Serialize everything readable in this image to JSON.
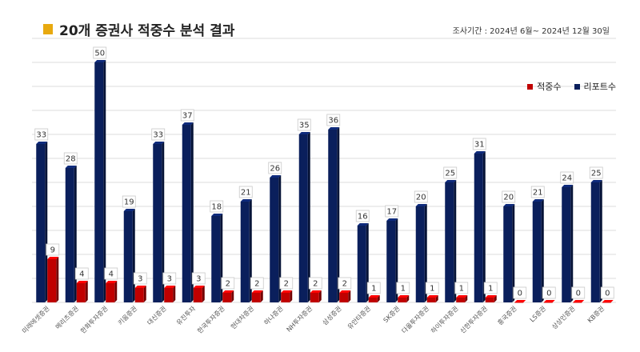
{
  "header": {
    "title": "20개 증권사 적중수 분석 결과",
    "period": "조사기간 : 2024년 6월~ 2024년 12월 30일"
  },
  "colors": {
    "accent": "#e8a90f",
    "hits": "#c00000",
    "reports": "#0a1f5c",
    "grid": "#dddddd"
  },
  "chart_data": {
    "type": "bar",
    "title": "20개 증권사 적중수 분석 결과",
    "xlabel": "",
    "ylabel": "",
    "ylim": [
      0,
      55
    ],
    "grid": true,
    "legend_position": "top-right",
    "categories": [
      "미래에셋증권",
      "메리츠증권",
      "한화투자증권",
      "키움증권",
      "대신증권",
      "유진투자",
      "한국투자증권",
      "현대차증권",
      "하나증권",
      "NH투자증권",
      "삼성증권",
      "유안타증권",
      "SK증권",
      "다올투자증권",
      "하이투자증권",
      "신한투자증권",
      "흥국증권",
      "LS증권",
      "상상인증권",
      "KB증권"
    ],
    "series": [
      {
        "name": "적중수",
        "values": [
          9,
          4,
          4,
          3,
          3,
          3,
          2,
          2,
          2,
          2,
          2,
          1,
          1,
          1,
          1,
          1,
          0,
          0,
          0,
          0
        ]
      },
      {
        "name": "리포트수",
        "values": [
          33,
          28,
          50,
          19,
          33,
          37,
          18,
          21,
          26,
          35,
          36,
          16,
          17,
          20,
          25,
          31,
          20,
          21,
          24,
          25
        ]
      }
    ]
  }
}
